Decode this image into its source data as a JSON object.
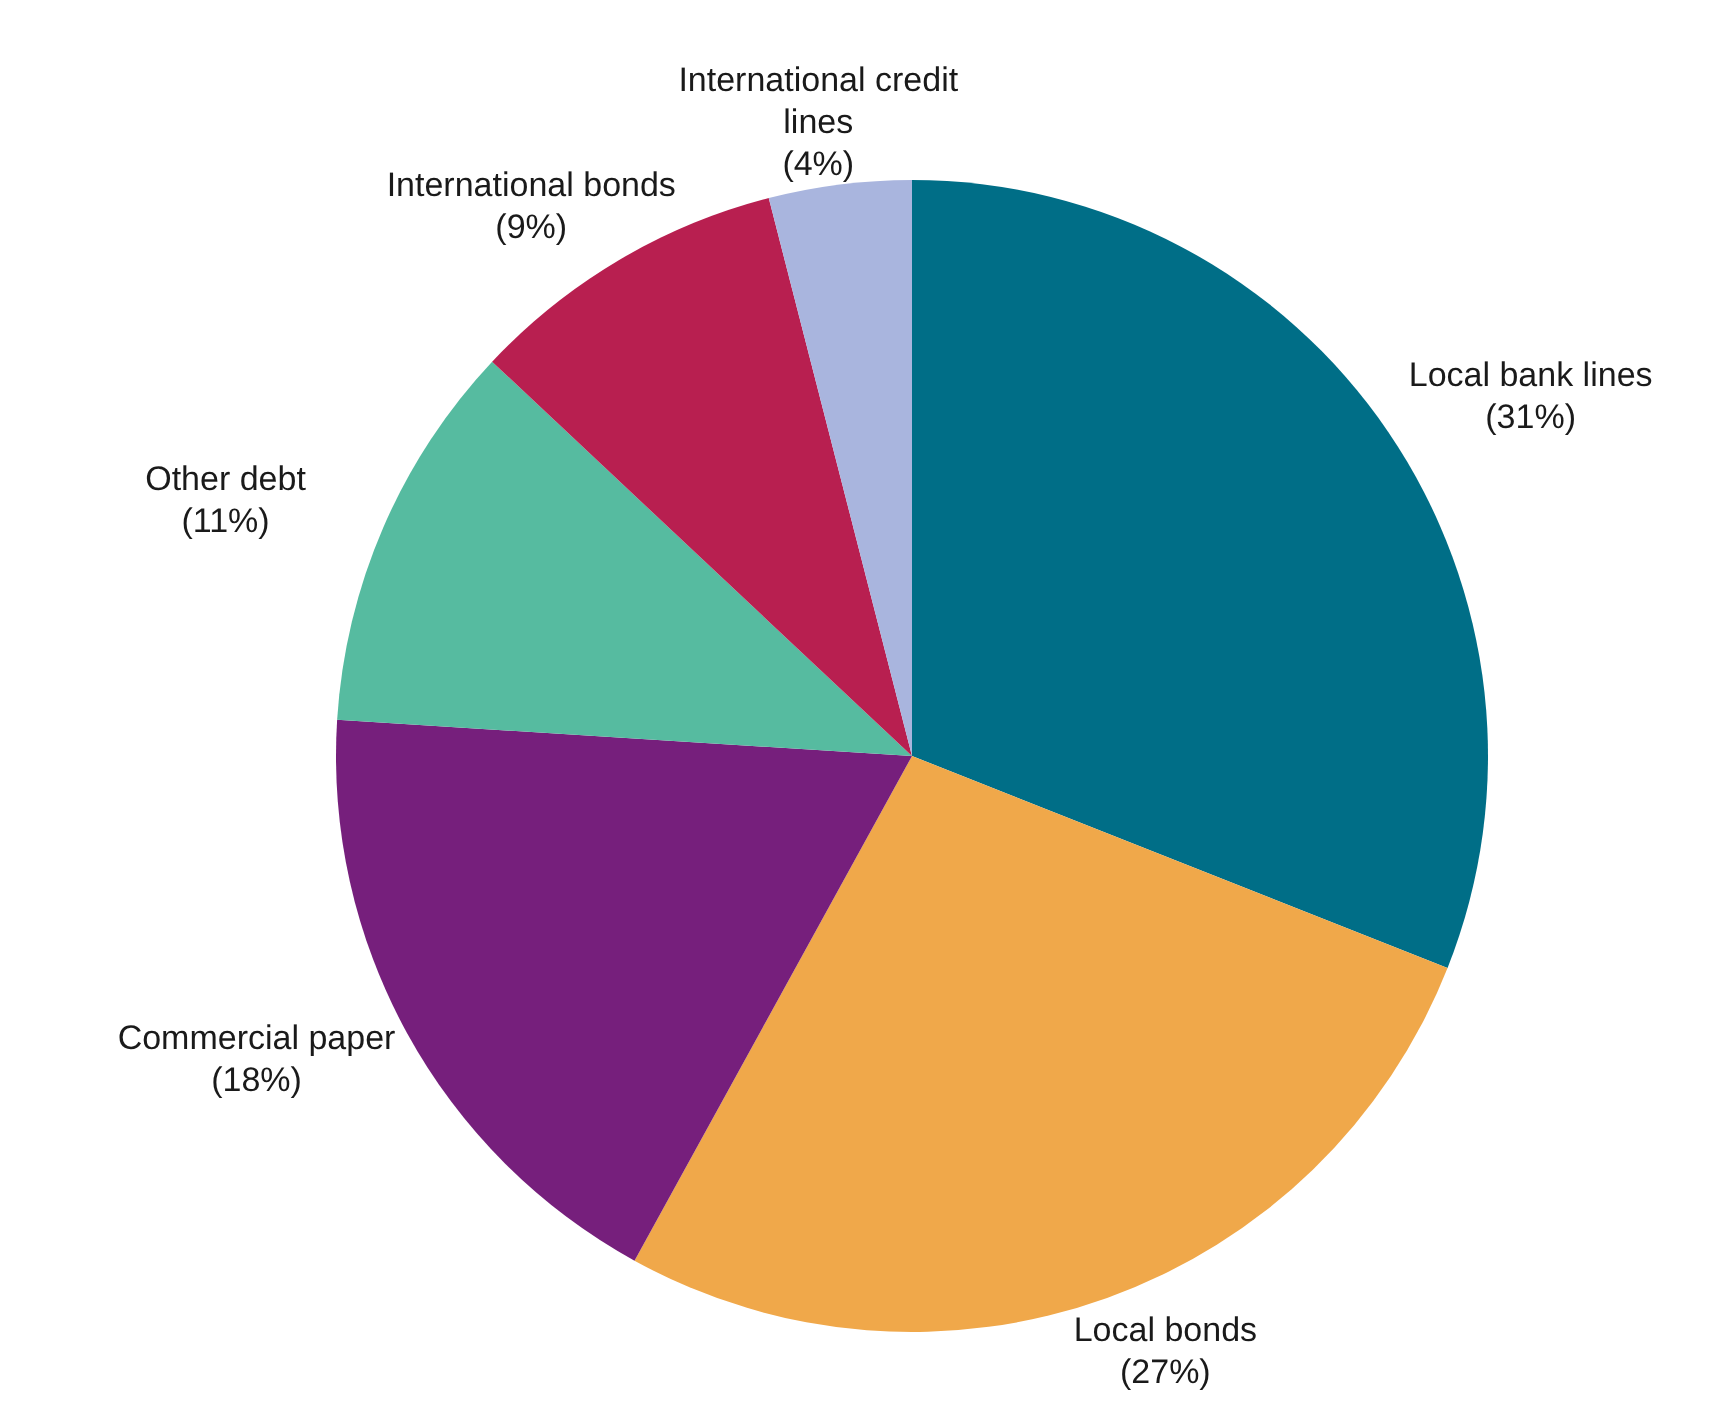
{
  "chart_data": {
    "type": "pie",
    "categories": [
      "Local bank lines",
      "Local bonds",
      "Commercial paper",
      "Other debt",
      "International bonds",
      "International credit lines"
    ],
    "values": [
      31,
      27,
      18,
      11,
      9,
      4
    ],
    "value_labels": [
      "(31%)",
      "(27%)",
      "(18%)",
      "(11%)",
      "(9%)",
      "(4%)"
    ],
    "colors": [
      "#006e87",
      "#f0a84a",
      "#761f7c",
      "#56bba0",
      "#b81f50",
      "#a9b5de"
    ]
  }
}
